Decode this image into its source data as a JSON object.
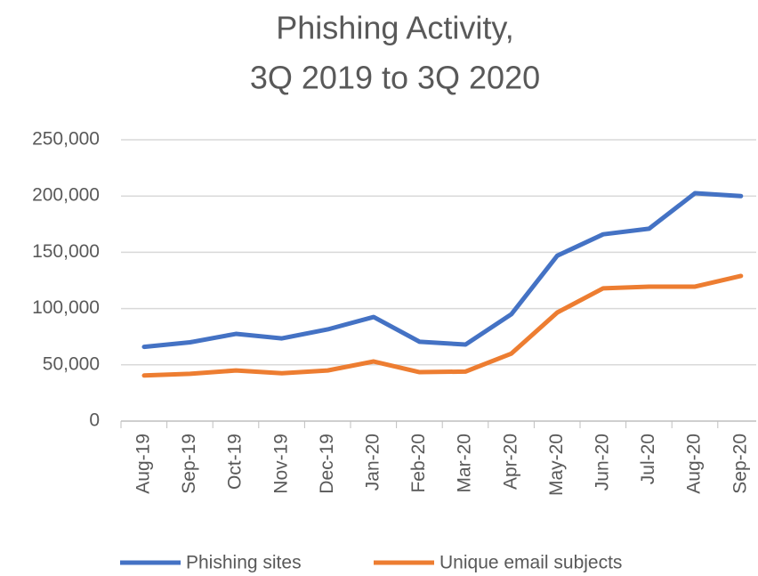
{
  "chart_data": {
    "type": "line",
    "title": [
      "Phishing Activity,",
      "3Q 2019 to 3Q 2020"
    ],
    "categories": [
      "Aug-19",
      "Sep-19",
      "Oct-19",
      "Nov-19",
      "Dec-19",
      "Jan-20",
      "Feb-20",
      "Mar-20",
      "Apr-20",
      "May-20",
      "Jun-20",
      "Jul-20",
      "Aug-20",
      "Sep-20"
    ],
    "series": [
      {
        "name": "Phishing sites",
        "color": "#4472c4",
        "values": [
          66000,
          70000,
          77500,
          73500,
          81500,
          92500,
          70500,
          68000,
          95000,
          147000,
          166000,
          171000,
          202500,
          200000
        ]
      },
      {
        "name": "Unique email subjects",
        "color": "#ed7d31",
        "values": [
          40500,
          42000,
          45000,
          42500,
          45000,
          53000,
          43500,
          44000,
          60000,
          96500,
          118000,
          119500,
          119500,
          129000
        ]
      }
    ],
    "ylim": [
      0,
      250000
    ],
    "yticks": [
      0,
      {
        "value": 50000,
        "label": "50,000"
      },
      {
        "value": 100000,
        "label": "100,000"
      },
      {
        "value": 150000,
        "label": "150,000"
      },
      {
        "value": 200000,
        "label": "200,000"
      },
      {
        "value": 250000,
        "label": "250,000"
      }
    ],
    "grid": true,
    "legend": "bottom"
  }
}
